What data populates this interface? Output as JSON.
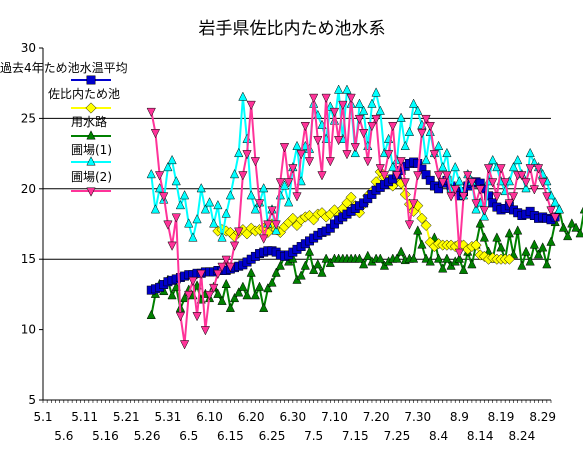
{
  "chart_data": {
    "type": "line",
    "title": "岩手県佐比内ため池水系",
    "xlabel": "",
    "ylabel": "",
    "ylim": [
      5,
      30
    ],
    "yticks": [
      5,
      10,
      15,
      20,
      25,
      30
    ],
    "grid": "horizontal at 15, 20, 25",
    "legend_position": "top-left",
    "x_range": [
      "5.1",
      "8.31"
    ],
    "x_tick_labels_row1": [
      "5.1",
      "5.11",
      "5.21",
      "5.31",
      "6.10",
      "6.20",
      "6.30",
      "7.10",
      "7.20",
      "7.30",
      "8.9",
      "8.19",
      "8.29"
    ],
    "x_tick_labels_row2": [
      "5.6",
      "5.16",
      "5.26",
      "6.5",
      "6.15",
      "6.25",
      "7.5",
      "7.15",
      "7.25",
      "8.4",
      "8.14",
      "8.24"
    ],
    "series": [
      {
        "name": "過去4年ため池水温平均",
        "color": "#0000cc",
        "marker": "square",
        "start": "5.27",
        "values": [
          12.8,
          12.9,
          13.0,
          13.2,
          13.4,
          13.5,
          13.6,
          13.7,
          13.8,
          13.9,
          13.9,
          14.0,
          14.0,
          14.1,
          14.1,
          14.1,
          14.2,
          14.2,
          14.2,
          14.3,
          14.4,
          14.5,
          14.6,
          14.8,
          15.0,
          15.2,
          15.4,
          15.5,
          15.6,
          15.6,
          15.5,
          15.3,
          15.2,
          15.3,
          15.5,
          15.7,
          15.9,
          16.1,
          16.3,
          16.5,
          16.7,
          16.9,
          17.0,
          17.2,
          17.5,
          17.8,
          18.0,
          18.2,
          18.4,
          18.6,
          18.8,
          19.0,
          19.3,
          19.6,
          19.9,
          20.1,
          20.3,
          20.5,
          20.7,
          21.0,
          21.3,
          21.6,
          21.8,
          21.9,
          21.8,
          21.4,
          21.0,
          20.6,
          20.2,
          20.0,
          20.4,
          20.6,
          20.2,
          19.8,
          19.5,
          19.8,
          20.2,
          20.4,
          20.5,
          20.4,
          20.0,
          19.5,
          19.0,
          18.7,
          18.5,
          18.6,
          18.8,
          18.5,
          18.3,
          18.1,
          18.2,
          18.4,
          18.1,
          17.9,
          18.0,
          17.9,
          17.8,
          18.0
        ]
      },
      {
        "name": "佐比内ため池",
        "color": "#ffff00",
        "marker": "diamond",
        "start": "6.12",
        "values": [
          17.0,
          17.1,
          17.0,
          16.9,
          16.6,
          16.9,
          17.1,
          16.8,
          17.2,
          17.0,
          17.1,
          17.2,
          16.9,
          17.5,
          17.1,
          16.9,
          17.3,
          17.6,
          17.9,
          17.4,
          17.8,
          18.0,
          18.1,
          17.8,
          18.2,
          18.3,
          18.0,
          18.2,
          18.5,
          18.1,
          18.6,
          19.0,
          19.4,
          18.8,
          18.3,
          18.9,
          19.5,
          19.8,
          20.5,
          21.2,
          20.8,
          20.5,
          20.2,
          20.8,
          20.4,
          19.6,
          18.9,
          18.4,
          18.8,
          17.9,
          17.4,
          16.2,
          15.9,
          16.1,
          16.0,
          16.0,
          16.0,
          15.9,
          16.1,
          16.0,
          15.7,
          15.9,
          16.0,
          15.3,
          15.2,
          15.0,
          15.1,
          15.0,
          15.0,
          15.0,
          15.0
        ]
      },
      {
        "name": "用水路",
        "color": "#008000",
        "marker": "triangle-up",
        "start": "5.27",
        "values": [
          11.0,
          12.5,
          13.2,
          12.7,
          13.5,
          12.4,
          13.0,
          11.5,
          12.2,
          12.8,
          12.4,
          13.1,
          12.1,
          12.5,
          12.2,
          13.0,
          12.5,
          12.0,
          13.2,
          11.5,
          12.2,
          12.6,
          13.0,
          12.4,
          14.0,
          12.4,
          13.0,
          11.5,
          12.9,
          13.3,
          14.0,
          14.5,
          15.2,
          14.8,
          15.0,
          13.5,
          13.8,
          14.5,
          15.5,
          14.2,
          14.6,
          14.0,
          15.0,
          14.7,
          15.0,
          15.0,
          15.0,
          15.0,
          15.0,
          15.0,
          15.0,
          14.6,
          15.2,
          14.8,
          15.0,
          15.0,
          14.5,
          14.8,
          15.0,
          15.0,
          15.5,
          14.9,
          15.0,
          15.0,
          17.0,
          16.0,
          15.0,
          14.8,
          16.5,
          15.0,
          14.3,
          15.0,
          14.5,
          14.8,
          15.0,
          14.2,
          15.5,
          14.6,
          16.0,
          17.5,
          16.5,
          15.5,
          15.0,
          16.5,
          15.8,
          15.0,
          16.8,
          15.3,
          17.0,
          14.5,
          15.5,
          14.8,
          16.0,
          15.3,
          15.8,
          14.6,
          16.2,
          17.6,
          18.5,
          17.2,
          16.6,
          17.5,
          17.2,
          16.8,
          18.5,
          18.0,
          16.5
        ]
      },
      {
        "name": "圃場(1)",
        "color": "#00ffff",
        "marker": "triangle-up",
        "start": "5.27",
        "values": [
          21.0,
          18.5,
          20.0,
          19.2,
          21.5,
          22.0,
          20.5,
          18.8,
          19.5,
          17.5,
          16.5,
          17.8,
          20.0,
          18.5,
          19.0,
          17.5,
          18.8,
          16.5,
          18.2,
          19.5,
          21.0,
          22.5,
          26.5,
          23.5,
          19.5,
          18.5,
          19.0,
          20.0,
          17.5,
          18.5,
          17.0,
          19.5,
          20.2,
          19.0,
          21.5,
          23.0,
          20.5,
          23.0,
          22.8,
          26.0,
          25.2,
          24.5,
          23.5,
          25.8,
          24.8,
          27.0,
          23.5,
          27.0,
          26.0,
          22.5,
          26.0,
          25.5,
          23.0,
          26.0,
          26.8,
          25.5,
          22.5,
          23.5,
          21.5,
          22.0,
          25.0,
          23.0,
          24.0,
          26.0,
          25.5,
          24.5,
          22.0,
          24.0,
          22.5,
          23.0,
          21.5,
          22.5,
          20.0,
          21.5,
          20.5,
          19.5,
          21.0,
          20.5,
          18.5,
          19.0,
          18.0,
          20.5,
          22.0,
          21.5,
          20.5,
          19.8,
          20.5,
          21.5,
          22.0,
          21.0,
          20.0,
          22.5,
          21.8,
          21.5,
          21.0,
          20.5,
          19.5,
          19.0,
          18.5
        ]
      },
      {
        "name": "圃場(2)",
        "color": "#ff3399",
        "marker": "triangle-down",
        "start": "5.27",
        "values": [
          25.5,
          24.0,
          21.0,
          19.5,
          17.5,
          16.0,
          18.0,
          11.0,
          9.0,
          12.5,
          13.5,
          11.0,
          14.0,
          10.0,
          12.5,
          13.0,
          14.0,
          14.5,
          15.0,
          14.5,
          16.0,
          17.0,
          21.0,
          22.5,
          26.0,
          22.0,
          19.0,
          16.5,
          17.5,
          18.5,
          17.5,
          20.5,
          23.0,
          20.5,
          21.5,
          19.5,
          22.5,
          24.5,
          22.0,
          26.5,
          23.5,
          21.0,
          26.5,
          22.0,
          25.5,
          23.5,
          26.0,
          22.5,
          26.5,
          23.0,
          25.0,
          24.0,
          22.0,
          24.5,
          25.0,
          21.5,
          21.0,
          22.5,
          24.5,
          21.0,
          22.0,
          20.5,
          17.5,
          19.0,
          21.0,
          24.0,
          25.0,
          24.5,
          22.5,
          21.0,
          20.5,
          21.0,
          19.5,
          20.0,
          15.5,
          19.5,
          21.0,
          20.5,
          19.0,
          20.0,
          18.5,
          21.5,
          20.5,
          19.5,
          21.5,
          20.5,
          19.0,
          19.5,
          21.0,
          21.0,
          20.5,
          21.5,
          20.0,
          21.5,
          20.5,
          19.5,
          18.5,
          18.0
        ]
      }
    ]
  }
}
